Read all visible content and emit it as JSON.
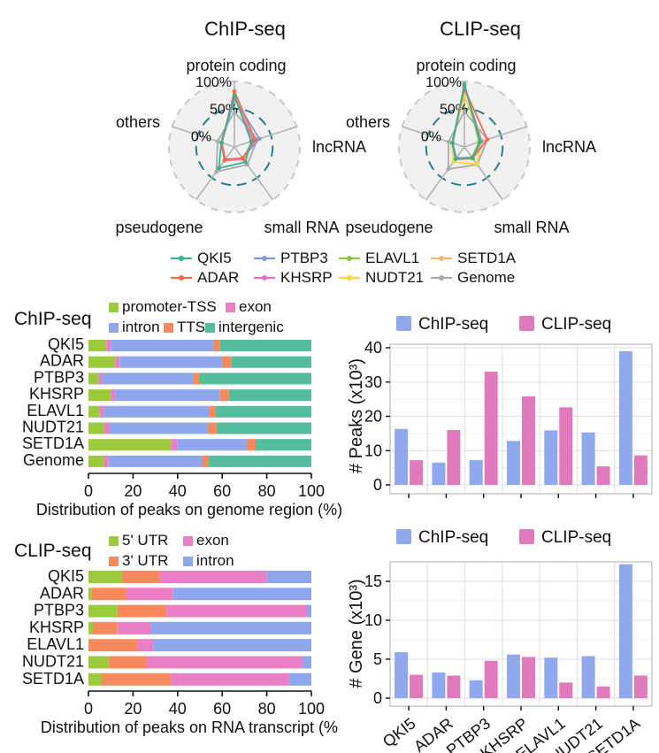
{
  "figure": {
    "background": "#ffffff",
    "text_color": "#111111",
    "grid_color": "#e3e3e3",
    "frame_color": "#c9c9c9"
  },
  "radar_section": {
    "axis_labels": [
      "protein coding",
      "lncRNA",
      "small RNA",
      "pseudogene",
      "others"
    ],
    "radial_tick_labels": [
      "100%",
      "50%",
      "0%"
    ],
    "grid": {
      "outer_circle_color": "#c9c9c9",
      "fifty_pct_circle_color": "#2a7d8c",
      "spoke_color": "#b3b3b3",
      "fill": "#f1f1f1"
    },
    "legend": [
      {
        "label": "QKI5",
        "color": "#3fb08f"
      },
      {
        "label": "ADAR",
        "color": "#f96a4f"
      },
      {
        "label": "PTBP3",
        "color": "#7f9bcf"
      },
      {
        "label": "KHSRP",
        "color": "#e070c4"
      },
      {
        "label": "ELAVL1",
        "color": "#8cc63e"
      },
      {
        "label": "NUDT21",
        "color": "#f7d842"
      },
      {
        "label": "SETD1A",
        "color": "#eebb77"
      },
      {
        "label": "Genome",
        "color": "#aaaaaa"
      }
    ]
  },
  "chart_data": [
    {
      "id": "radar_chip",
      "type": "radar",
      "title": "ChIP-seq",
      "axes": [
        "protein coding",
        "lncRNA",
        "small RNA",
        "pseudogene",
        "others"
      ],
      "range": [
        0,
        100
      ],
      "tick_labels": [
        {
          "label": "100%",
          "value": 100
        },
        {
          "label": "50%",
          "value": 50
        },
        {
          "label": "0%",
          "value": 0
        }
      ],
      "series": [
        {
          "name": "QKI5",
          "color": "#3fb08f",
          "values": [
            74,
            12,
            14,
            28,
            5
          ]
        },
        {
          "name": "ADAR",
          "color": "#f96a4f",
          "values": [
            82,
            20,
            5,
            8,
            4
          ]
        },
        {
          "name": "PTBP3",
          "color": "#7f9bcf",
          "values": [
            68,
            28,
            5,
            8,
            4
          ]
        },
        {
          "name": "KHSRP",
          "color": "#e070c4",
          "values": [
            72,
            16,
            7,
            10,
            5
          ]
        },
        {
          "name": "ELAVL1",
          "color": "#8cc63e",
          "values": [
            70,
            17,
            7,
            11,
            5
          ]
        },
        {
          "name": "NUDT21",
          "color": "#f7d842",
          "values": [
            73,
            15,
            9,
            11,
            5
          ]
        },
        {
          "name": "SETD1A",
          "color": "#eebb77",
          "values": [
            77,
            14,
            6,
            9,
            4
          ]
        },
        {
          "name": "Genome",
          "color": "#aaaaaa",
          "values": [
            44,
            24,
            20,
            36,
            12
          ]
        }
      ]
    },
    {
      "id": "radar_clip",
      "type": "radar",
      "title": "CLIP-seq",
      "axes": [
        "protein coding",
        "lncRNA",
        "small RNA",
        "pseudogene",
        "others"
      ],
      "range": [
        0,
        100
      ],
      "tick_labels": [
        {
          "label": "100%",
          "value": 100
        },
        {
          "label": "50%",
          "value": 50
        },
        {
          "label": "0%",
          "value": 0
        }
      ],
      "series": [
        {
          "name": "QKI5",
          "color": "#3fb08f",
          "values": [
            94,
            10,
            5,
            7,
            3
          ]
        },
        {
          "name": "ADAR",
          "color": "#f96a4f",
          "values": [
            87,
            24,
            5,
            7,
            3
          ]
        },
        {
          "name": "PTBP3",
          "color": "#7f9bcf",
          "values": [
            95,
            11,
            4,
            5,
            2
          ]
        },
        {
          "name": "KHSRP",
          "color": "#e070c4",
          "values": [
            92,
            12,
            5,
            7,
            3
          ]
        },
        {
          "name": "ELAVL1",
          "color": "#8cc63e",
          "values": [
            96,
            8,
            3,
            5,
            2
          ]
        },
        {
          "name": "NUDT21",
          "color": "#f7d842",
          "values": [
            74,
            12,
            19,
            14,
            4
          ]
        },
        {
          "name": "SETD1A",
          "color": "#eebb77",
          "values": [
            89,
            14,
            7,
            8,
            3
          ]
        },
        {
          "name": "Genome",
          "color": "#aaaaaa",
          "values": [
            45,
            24,
            20,
            30,
            10
          ]
        }
      ]
    },
    {
      "id": "chip_stacked",
      "type": "stacked_bar_horizontal",
      "title": "ChIP-seq",
      "categories": [
        "QKI5",
        "ADAR",
        "PTBP3",
        "KHSRP",
        "ELAVL1",
        "NUDT21",
        "SETD1A",
        "Genome"
      ],
      "xlabel": "Distribution of peaks on genome region (%)",
      "xticks": [
        0,
        20,
        40,
        60,
        80,
        100
      ],
      "xlim": [
        0,
        100
      ],
      "legend_rows": [
        [
          "promoter-TSS",
          "exon"
        ],
        [
          "intron",
          "TTS",
          "intergenic"
        ]
      ],
      "series": [
        {
          "name": "promoter-TSS",
          "color": "#9bcb3d",
          "values": [
            8,
            12,
            4.5,
            10,
            5,
            7,
            37,
            7
          ]
        },
        {
          "name": "exon",
          "color": "#ea7fc6",
          "values": [
            2,
            2,
            1.5,
            2,
            2,
            2.5,
            3,
            2
          ]
        },
        {
          "name": "intron",
          "color": "#8ea6ec",
          "values": [
            46,
            46,
            41,
            47,
            47,
            44,
            31,
            42
          ]
        },
        {
          "name": "TTS",
          "color": "#f68a5d",
          "values": [
            3,
            4,
            3,
            4,
            3,
            4,
            4,
            3
          ]
        },
        {
          "name": "intergenic",
          "color": "#54bd9d",
          "values": [
            41,
            36,
            50,
            37,
            43,
            42.5,
            25,
            46
          ]
        }
      ]
    },
    {
      "id": "peaks",
      "type": "grouped_bar",
      "ylabel": "# Peaks (x10³)",
      "categories": [
        "QKI5",
        "ADAR",
        "PTBP3",
        "KHSRP",
        "ELAVL1",
        "NUDT21",
        "SETD1A"
      ],
      "yticks": [
        0,
        10,
        20,
        30,
        40
      ],
      "ylim": [
        0,
        41
      ],
      "show_category_labels": false,
      "series": [
        {
          "name": "ChIP-seq",
          "color": "#8fa8ee",
          "values": [
            16.3,
            6.5,
            7.2,
            12.8,
            15.9,
            15.3,
            39
          ]
        },
        {
          "name": "CLIP-seq",
          "color": "#e07abc",
          "values": [
            7.2,
            16,
            33,
            25.8,
            22.6,
            5.4,
            8.6
          ]
        }
      ]
    },
    {
      "id": "clip_stacked",
      "type": "stacked_bar_horizontal",
      "title": "CLIP-seq",
      "categories": [
        "QKI5",
        "ADAR",
        "PTBP3",
        "KHSRP",
        "ELAVL1",
        "NUDT21",
        "SETD1A"
      ],
      "xlabel": "Distribution of peaks on RNA transcript (%",
      "xticks": [
        0,
        20,
        40,
        60,
        80,
        100
      ],
      "xlim": [
        0,
        100
      ],
      "legend_rows": [
        [
          "5' UTR",
          "exon"
        ],
        [
          "3' UTR",
          "intron"
        ]
      ],
      "series": [
        {
          "name": "5' UTR",
          "color": "#9bcb3d",
          "values": [
            15,
            1.5,
            13,
            2,
            0,
            9,
            6
          ]
        },
        {
          "name": "3' UTR",
          "color": "#f68a5d",
          "values": [
            17,
            15.5,
            22,
            11,
            22,
            17,
            31
          ]
        },
        {
          "name": "exon",
          "color": "#ea7fc6",
          "values": [
            48,
            21,
            63,
            15,
            7,
            70,
            53
          ]
        },
        {
          "name": "intron",
          "color": "#8ea6ec",
          "values": [
            20,
            62,
            2,
            72,
            71,
            4,
            10
          ]
        }
      ]
    },
    {
      "id": "genes",
      "type": "grouped_bar",
      "ylabel": "# Gene (x10³)",
      "categories": [
        "QKI5",
        "ADAR",
        "PTBP3",
        "KHSRP",
        "ELAVL1",
        "NUDT21",
        "SETD1A"
      ],
      "yticks": [
        0,
        5,
        10,
        15
      ],
      "ylim": [
        0,
        17.5
      ],
      "show_category_labels": true,
      "series": [
        {
          "name": "ChIP-seq",
          "color": "#8fa8ee",
          "values": [
            5.9,
            3.3,
            2.3,
            5.6,
            5.2,
            5.4,
            17.2
          ]
        },
        {
          "name": "CLIP-seq",
          "color": "#e07abc",
          "values": [
            3.0,
            2.9,
            4.8,
            5.3,
            2.0,
            1.5,
            2.9
          ]
        }
      ]
    }
  ]
}
